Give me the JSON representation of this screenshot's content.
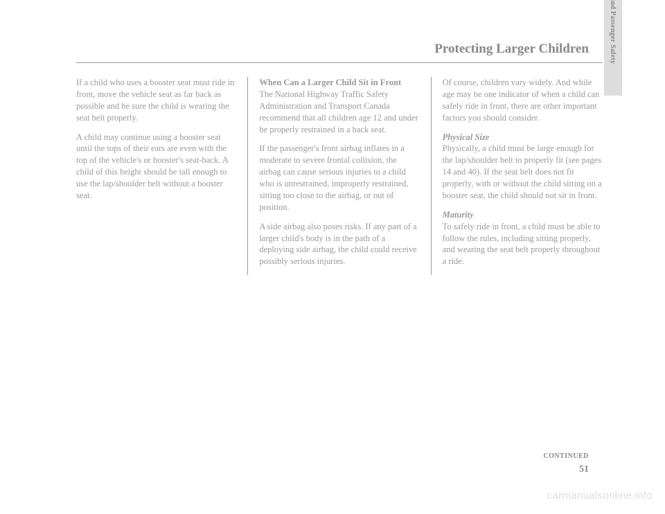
{
  "page": {
    "sectionTitle": "Protecting Larger Children",
    "sideTab": "Driver and Passenger Safety",
    "continued": "CONTINUED",
    "pageNumber": "51",
    "watermark": "carmanualsonline.info"
  },
  "column1": {
    "para1": "If a child who uses a booster seat must ride in front, move the vehicle seat as far back as possible and be sure the child is wearing the seat belt properly.",
    "para2": "A child may continue using a booster seat until the tops of their ears are even with the top of the vehicle's or booster's seat-back. A child of this height should be tall enough to use the lap/shoulder belt without a booster seat."
  },
  "column2": {
    "heading": "When Can a Larger Child Sit in Front",
    "para1": "The National Highway Traffic Safety Administration and Transport Canada recommend that all children age 12 and under be properly restrained in a back seat.",
    "para2": "If the passenger's front airbag inflates in a moderate to severe frontal collision, the airbag can cause serious injuries to a child who is unrestrained, improperly restrained, sitting too close to the airbag, or out of position.",
    "para3": "A side airbag also poses risks. If any part of a larger child's body is in the path of a deploying side airbag, the child could receive possibly serious injuries."
  },
  "column3": {
    "para1": "Of course, children vary widely. And while age may be one indicator of when a child can safely ride in front, there are other important factors you should consider.",
    "heading1": "Physical Size",
    "para2": "Physically, a child must be large enough for the lap/shoulder belt to properly fit (see pages 14 and 40). If the seat belt does not fit properly, with or without the child sitting on a booster seat, the child should not sit in front.",
    "heading2": "Maturity",
    "para3": "To safely ride in front, a child must be able to follow the rules, including sitting properly, and wearing the seat belt properly throughout a ride."
  }
}
